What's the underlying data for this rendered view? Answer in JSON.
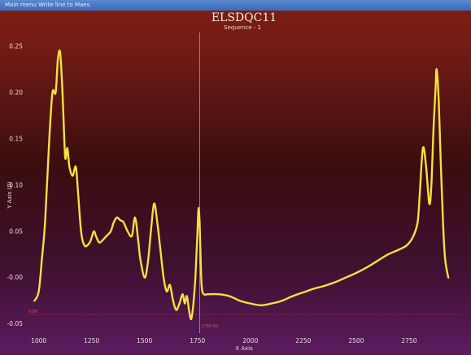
{
  "window": {
    "title": "Main menu Write line to Maes"
  },
  "colors": {
    "curve": "#f2e23c",
    "cursor": "#d8a0a0",
    "marker": "#d03040"
  },
  "chart_data": {
    "type": "line",
    "title": "ELSDQC11",
    "subtitle": "Sequence - 1",
    "xlabel": "X Axis",
    "ylabel": "Y Axis (0)",
    "xlim": [
      940,
      3000
    ],
    "ylim": [
      -0.06,
      0.265
    ],
    "x_ticks": [
      1000,
      1250,
      1500,
      1750,
      2000,
      2250,
      2500,
      2750
    ],
    "y_ticks": [
      -0.05,
      0.0,
      0.05,
      0.1,
      0.15,
      0.2,
      0.25
    ],
    "x_tick_labels": [
      "1000",
      "1250",
      "1500",
      "1750",
      "2000",
      "2250",
      "2500",
      "2750"
    ],
    "y_tick_labels": [
      "-0.05",
      "-0.00",
      "0.05",
      "0.10",
      "0.15",
      "0.20",
      "0.25"
    ],
    "cursor_x": 1760,
    "marker_y": -0.04,
    "marker_left_label": "0.00",
    "marker_center_label": "1760.00",
    "series": [
      {
        "x": [
          980,
          1000,
          1015,
          1030,
          1050,
          1065,
          1080,
          1090,
          1100,
          1108,
          1115,
          1125,
          1135,
          1145,
          1160,
          1175,
          1185,
          1200,
          1215,
          1230,
          1245,
          1260,
          1270,
          1285,
          1300,
          1320,
          1340,
          1355,
          1370,
          1385,
          1400,
          1420,
          1440,
          1455,
          1470,
          1480,
          1500,
          1515,
          1530,
          1545,
          1560,
          1575,
          1590,
          1605,
          1620,
          1635,
          1650,
          1665,
          1680,
          1690,
          1700,
          1710,
          1720,
          1730,
          1740,
          1750,
          1755,
          1760,
          1765,
          1770,
          1780,
          1800,
          1850,
          1900,
          1950,
          2000,
          2050,
          2100,
          2150,
          2200,
          2250,
          2300,
          2350,
          2400,
          2450,
          2500,
          2550,
          2600,
          2650,
          2700,
          2740,
          2770,
          2790,
          2800,
          2815,
          2830,
          2845,
          2855,
          2865,
          2875,
          2880,
          2890,
          2900,
          2910,
          2920,
          2935
        ],
        "y": [
          -0.025,
          -0.015,
          0.02,
          0.06,
          0.15,
          0.2,
          0.2,
          0.235,
          0.245,
          0.22,
          0.185,
          0.13,
          0.14,
          0.12,
          0.11,
          0.12,
          0.095,
          0.05,
          0.035,
          0.035,
          0.04,
          0.05,
          0.045,
          0.038,
          0.04,
          0.045,
          0.05,
          0.06,
          0.065,
          0.062,
          0.06,
          0.05,
          0.045,
          0.065,
          0.04,
          0.02,
          0.0,
          0.015,
          0.05,
          0.08,
          0.06,
          0.03,
          0.0,
          -0.015,
          -0.008,
          -0.025,
          -0.035,
          -0.028,
          -0.018,
          -0.028,
          -0.02,
          -0.035,
          -0.045,
          -0.03,
          0.0,
          0.05,
          0.075,
          0.06,
          0.02,
          -0.01,
          -0.018,
          -0.018,
          -0.018,
          -0.02,
          -0.025,
          -0.028,
          -0.03,
          -0.028,
          -0.025,
          -0.02,
          -0.016,
          -0.012,
          -0.009,
          -0.005,
          0.0,
          0.005,
          0.011,
          0.018,
          0.025,
          0.03,
          0.035,
          0.045,
          0.06,
          0.09,
          0.14,
          0.12,
          0.08,
          0.1,
          0.16,
          0.205,
          0.225,
          0.19,
          0.12,
          0.06,
          0.02,
          0.0
        ]
      }
    ]
  }
}
